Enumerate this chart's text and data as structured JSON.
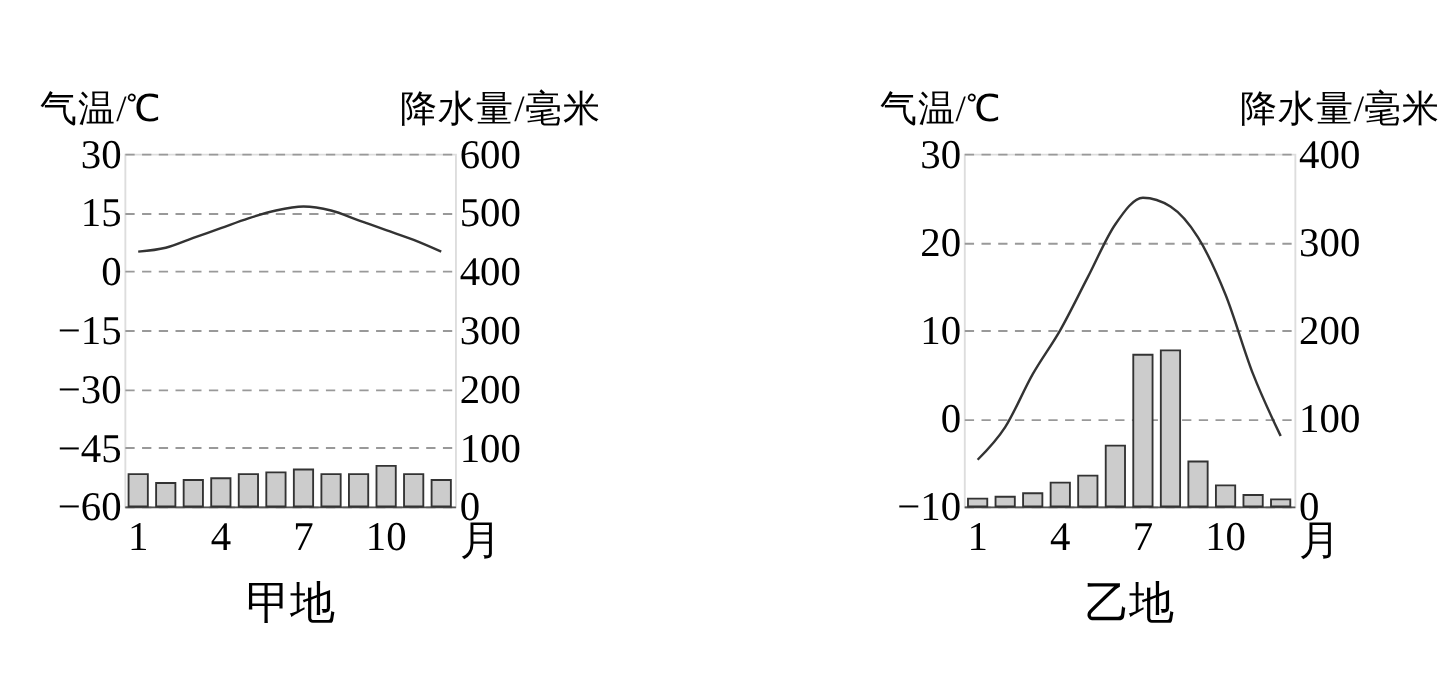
{
  "chart_data": [
    {
      "type": "bar",
      "title": "甲地",
      "xlabel": "月",
      "ylabel": "气温/℃",
      "y2label": "降水量/毫米",
      "categories": [
        "1",
        null,
        null,
        "4",
        null,
        null,
        "7",
        null,
        null,
        "10",
        null,
        null
      ],
      "ylim": [
        -60,
        30
      ],
      "yticks": [
        -60,
        -45,
        -30,
        -15,
        0,
        15,
        30
      ],
      "y2lim": [
        0,
        600
      ],
      "y2ticks": [
        0,
        100,
        200,
        300,
        400,
        500,
        600
      ],
      "grid": "y",
      "series": [
        {
          "axis": "y2",
          "color": "#cccccc",
          "values": [
            55,
            40,
            45,
            48,
            55,
            58,
            63,
            55,
            55,
            69,
            55,
            45
          ]
        },
        {
          "type": "line",
          "color": "#333333",
          "values": [
            5,
            6,
            8.5,
            11,
            13.5,
            15.5,
            16.5,
            15.5,
            13,
            10.5,
            8,
            5
          ]
        }
      ]
    },
    {
      "type": "bar",
      "title": "乙地",
      "xlabel": "月",
      "ylabel": "气温/℃",
      "y2label": "降水量/毫米",
      "categories": [
        "1",
        null,
        null,
        "4",
        null,
        null,
        "7",
        null,
        null,
        "10",
        null,
        null
      ],
      "ylim": [
        -10,
        30
      ],
      "yticks": [
        -10,
        0,
        10,
        20,
        30
      ],
      "y2lim": [
        0,
        400
      ],
      "y2ticks": [
        0,
        100,
        200,
        300,
        400
      ],
      "grid": "y",
      "series": [
        {
          "axis": "y2",
          "color": "#cccccc",
          "values": [
            9,
            11,
            15,
            27,
            35,
            69,
            172,
            177,
            51,
            24,
            13,
            8
          ]
        },
        {
          "type": "line",
          "color": "#333333",
          "values": [
            -4.7,
            -1,
            5,
            10,
            16,
            22,
            25,
            24,
            20.5,
            14,
            5,
            -2
          ]
        }
      ]
    }
  ]
}
